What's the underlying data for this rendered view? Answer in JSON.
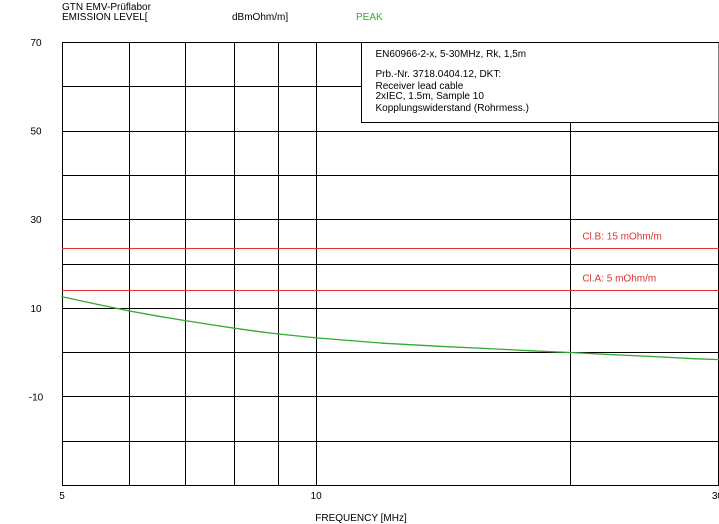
{
  "header": {
    "lab": "GTN EMV-Prüflabor",
    "ylabel_prefix": "EMISSION LEVEL[",
    "unit": "dBmOhm/m]",
    "detector": "PEAK"
  },
  "info_box": {
    "lines": [
      "EN60966-2-x, 5-30MHz, Rk, 1,5m",
      "Prb.-Nr. 3718.0404.12, DKT:",
      "Receiver lead cable",
      "2xIEC, 1.5m, Sample 10",
      "Kopplungswiderstand (Rohrmess.)"
    ]
  },
  "colors": {
    "limit": "#e03030",
    "trace": "#33aa33",
    "grid": "#000000"
  },
  "chart_data": {
    "type": "line",
    "xscale": "log",
    "xlim": [
      5,
      30
    ],
    "ylim": [
      -30,
      70
    ],
    "xlabel": "FREQUENCY [MHz]",
    "ylabel": "EMISSION LEVEL[ dBmOhm/m]",
    "x_ticks": [
      "5",
      "10",
      "30"
    ],
    "y_ticks": [
      "70",
      "50",
      "30",
      "10",
      "-10"
    ],
    "grid": true,
    "limits": [
      {
        "label": "Cl.B: 15 mOhm/m",
        "y": 23.5
      },
      {
        "label": "Cl.A:  5 mOhm/m",
        "y": 14
      }
    ],
    "series": [
      {
        "x": [
          5,
          5.5,
          6,
          6.5,
          7,
          7.5,
          8,
          8.5,
          9,
          10,
          11,
          12,
          14,
          16,
          18,
          20,
          22,
          25,
          28,
          30
        ],
        "y": [
          12.5,
          10.8,
          9.3,
          8.1,
          7.1,
          6.2,
          5.4,
          4.7,
          4.1,
          3.2,
          2.6,
          2.0,
          1.3,
          0.8,
          0.3,
          -0.1,
          -0.5,
          -1.0,
          -1.5,
          -1.7
        ]
      }
    ]
  }
}
